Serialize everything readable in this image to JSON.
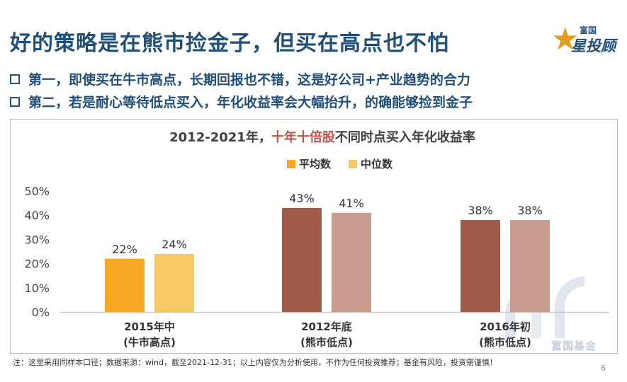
{
  "header": {
    "title": "好的策略是在熊市捡金子，但买在高点也不怕",
    "logo_small": "富国",
    "logo_big": "星投顾"
  },
  "bullets": [
    "第一，即使买在牛市高点，长期回报也不错，这是好公司+产业趋势的合力",
    "第二，若是耐心等待低点买入，年化收益率会大幅抬升，的确能够捡到金子"
  ],
  "chart_data": {
    "type": "bar",
    "title_parts": [
      {
        "text": "2012-2021年，",
        "color": "#404040"
      },
      {
        "text": "十年十倍股",
        "color": "#c0504d"
      },
      {
        "text": "不同时点买入年化收益率",
        "color": "#404040"
      }
    ],
    "categories": [
      {
        "line1": "2015年中",
        "line2": "(牛市高点)"
      },
      {
        "line1": "2012年底",
        "line2": "(熊市低点)"
      },
      {
        "line1": "2016年初",
        "line2": "(熊市低点)"
      }
    ],
    "series": [
      {
        "name": "平均数",
        "values": [
          22,
          43,
          38
        ],
        "labels": [
          "22%",
          "43%",
          "38%"
        ],
        "colors": [
          "#f7a823",
          "#a05c48",
          "#a05c48"
        ]
      },
      {
        "name": "中位数",
        "values": [
          24,
          41,
          38
        ],
        "labels": [
          "24%",
          "41%",
          "38%"
        ],
        "colors": [
          "#f7c962",
          "#c89d8f",
          "#c89d8f"
        ]
      }
    ],
    "legend_colors": [
      "#f7a823",
      "#f7c962"
    ],
    "legend_position": "top-center",
    "yticks": [
      "0%",
      "10%",
      "20%",
      "30%",
      "40%",
      "50%"
    ],
    "ylim": [
      0,
      50
    ],
    "grid": false
  },
  "watermark": "富国基金",
  "footnote": "注：这里采用同样本口径；数据来源：wind，截至2021-12-31；以上内容仅为分析使用，不作为任何投资推荐；基金有风险，投资需谨慎！",
  "page_number": "6"
}
